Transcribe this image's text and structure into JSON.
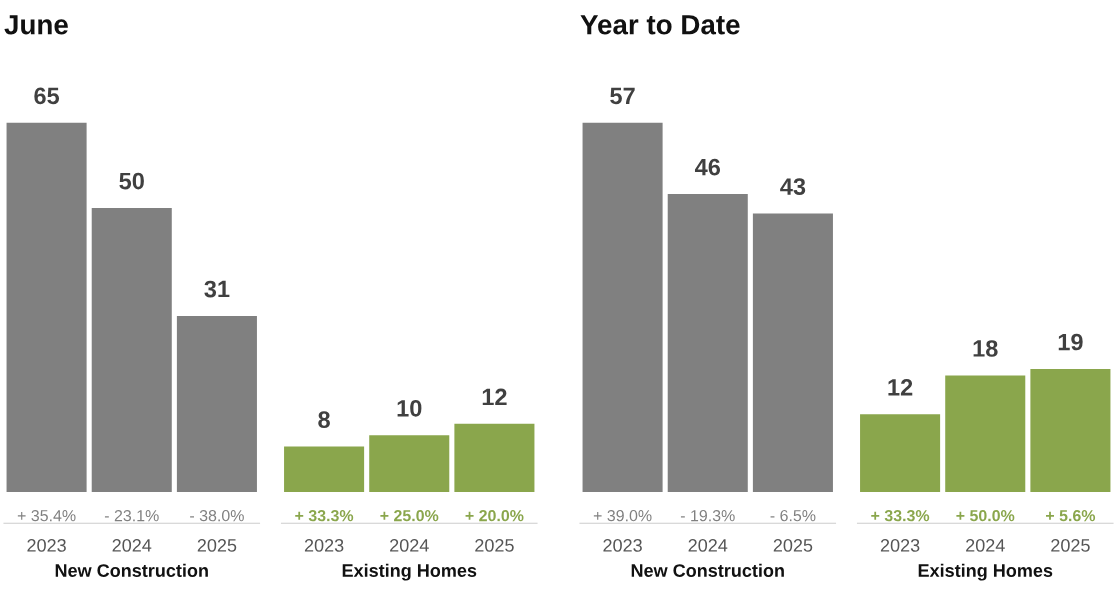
{
  "chart_data": [
    {
      "type": "bar",
      "title": "June",
      "xlabel": "New Construction",
      "categories": [
        "2023",
        "2024",
        "2025"
      ],
      "values": [
        65,
        50,
        31
      ],
      "colors": [
        "#808080",
        "#808080",
        "#808080"
      ],
      "data_labels": true,
      "annotations": [
        "+ 35.4%",
        "- 23.1%",
        "- 38.0%"
      ]
    },
    {
      "type": "bar",
      "xlabel": "Existing Homes",
      "categories": [
        "2023",
        "2024",
        "2025"
      ],
      "values": [
        8,
        10,
        12
      ],
      "colors": [
        "#8aa64c",
        "#8aa64c",
        "#8aa64c"
      ],
      "data_labels": true,
      "annotations": [
        "+ 33.3%",
        "+ 25.0%",
        "+ 20.0%"
      ]
    },
    {
      "type": "bar",
      "title": "Year to Date",
      "xlabel": "New Construction",
      "categories": [
        "2023",
        "2024",
        "2025"
      ],
      "values": [
        57,
        46,
        43
      ],
      "colors": [
        "#808080",
        "#808080",
        "#808080"
      ],
      "data_labels": true,
      "annotations": [
        "+ 39.0%",
        "- 19.3%",
        "- 6.5%"
      ]
    },
    {
      "type": "bar",
      "xlabel": "Existing Homes",
      "categories": [
        "2023",
        "2024",
        "2025"
      ],
      "values": [
        12,
        18,
        19
      ],
      "colors": [
        "#8aa64c",
        "#8aa64c",
        "#8aa64c"
      ],
      "data_labels": true,
      "annotations": [
        "+ 33.3%",
        "+ 50.0%",
        "+ 5.6%"
      ]
    }
  ]
}
